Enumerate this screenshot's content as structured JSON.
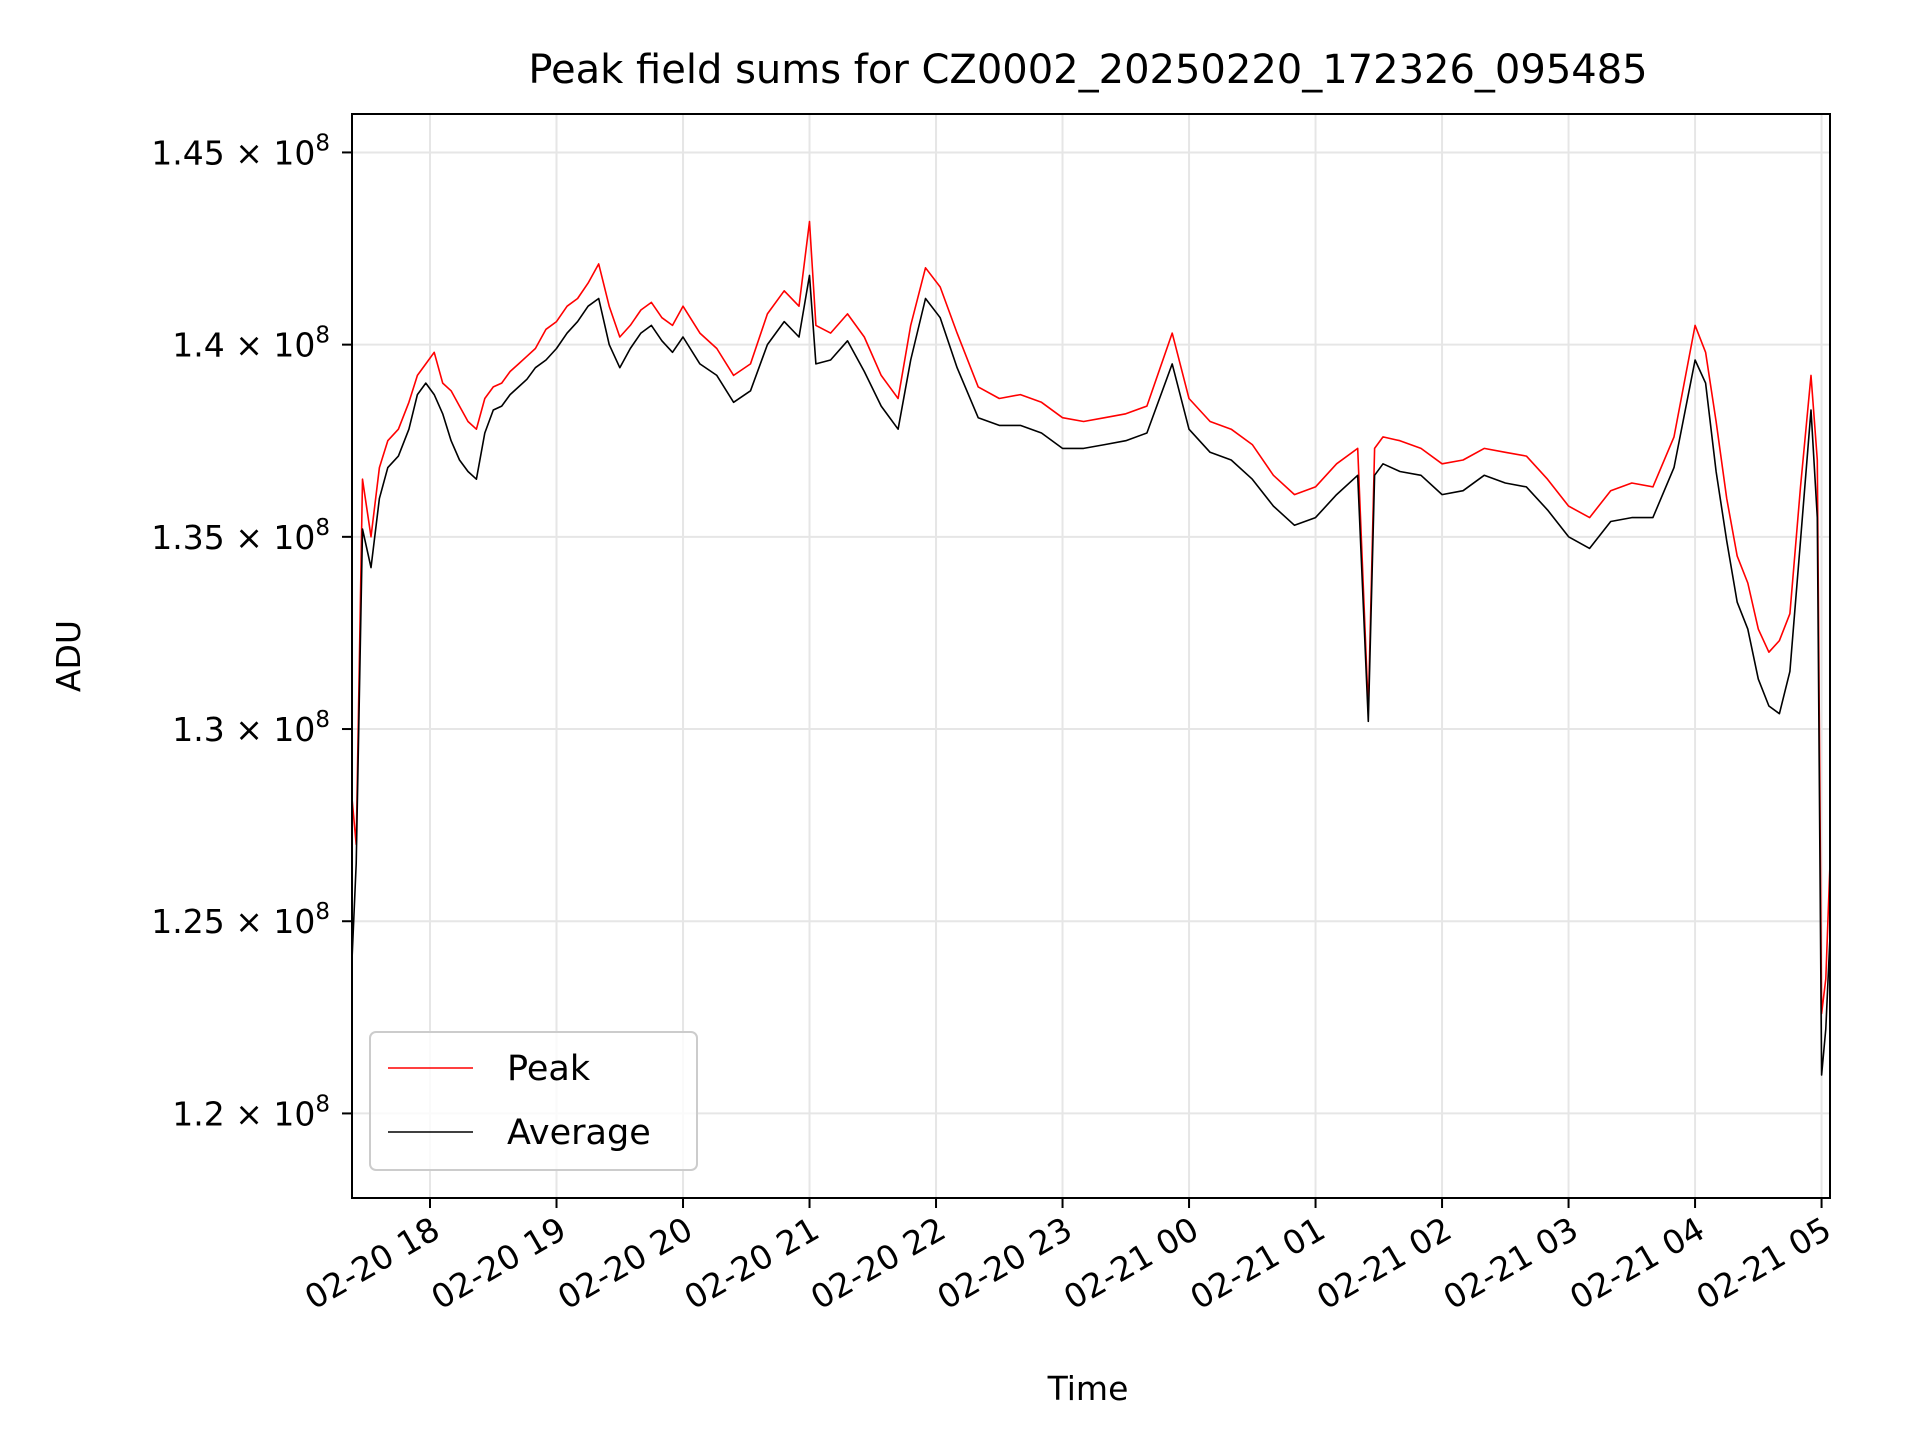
{
  "chart_data": {
    "type": "line",
    "title": "Peak field sums for CZ0002_20250220_172326_095485",
    "xlabel": "Time",
    "ylabel": "ADU",
    "xlim": [
      "2025-02-20 17:23",
      "2025-02-21 05:04"
    ],
    "ylim": [
      117800000,
      146000000
    ],
    "grid": true,
    "legend_position": "lower-left",
    "colors": {
      "Peak": "#ff0000",
      "Average": "#000000"
    },
    "x_ticks": [
      "2025-02-20 18:00",
      "2025-02-20 19:00",
      "2025-02-20 20:00",
      "2025-02-20 21:00",
      "2025-02-20 22:00",
      "2025-02-20 23:00",
      "2025-02-21 00:00",
      "2025-02-21 01:00",
      "2025-02-21 02:00",
      "2025-02-21 03:00",
      "2025-02-21 04:00",
      "2025-02-21 05:00"
    ],
    "x_tick_labels": [
      "02-20 18",
      "02-20 19",
      "02-20 20",
      "02-20 21",
      "02-20 22",
      "02-20 23",
      "02-21 00",
      "02-21 01",
      "02-21 02",
      "02-21 03",
      "02-21 04",
      "02-21 05"
    ],
    "y_ticks": [
      {
        "value": 120000000,
        "mantissa": "1.2"
      },
      {
        "value": 125000000,
        "mantissa": "1.25"
      },
      {
        "value": 130000000,
        "mantissa": "1.3"
      },
      {
        "value": 135000000,
        "mantissa": "1.35"
      },
      {
        "value": 140000000,
        "mantissa": "1.4"
      },
      {
        "value": 145000000,
        "mantissa": "1.45"
      }
    ],
    "y_tick_base": "10",
    "y_tick_exponent": "8",
    "series": [
      {
        "name": "Peak",
        "x": [
          "2025-02-20 17:23",
          "2025-02-20 17:25",
          "2025-02-20 17:28",
          "2025-02-20 17:32",
          "2025-02-20 17:36",
          "2025-02-20 17:40",
          "2025-02-20 17:45",
          "2025-02-20 17:50",
          "2025-02-20 17:54",
          "2025-02-20 17:58",
          "2025-02-20 18:02",
          "2025-02-20 18:06",
          "2025-02-20 18:10",
          "2025-02-20 18:14",
          "2025-02-20 18:18",
          "2025-02-20 18:22",
          "2025-02-20 18:26",
          "2025-02-20 18:30",
          "2025-02-20 18:34",
          "2025-02-20 18:38",
          "2025-02-20 18:42",
          "2025-02-20 18:46",
          "2025-02-20 18:50",
          "2025-02-20 18:55",
          "2025-02-20 19:00",
          "2025-02-20 19:05",
          "2025-02-20 19:10",
          "2025-02-20 19:15",
          "2025-02-20 19:20",
          "2025-02-20 19:25",
          "2025-02-20 19:30",
          "2025-02-20 19:35",
          "2025-02-20 19:40",
          "2025-02-20 19:45",
          "2025-02-20 19:50",
          "2025-02-20 19:55",
          "2025-02-20 20:00",
          "2025-02-20 20:08",
          "2025-02-20 20:16",
          "2025-02-20 20:24",
          "2025-02-20 20:32",
          "2025-02-20 20:40",
          "2025-02-20 20:48",
          "2025-02-20 20:55",
          "2025-02-20 21:00",
          "2025-02-20 21:03",
          "2025-02-20 21:10",
          "2025-02-20 21:18",
          "2025-02-20 21:26",
          "2025-02-20 21:34",
          "2025-02-20 21:42",
          "2025-02-20 21:48",
          "2025-02-20 21:55",
          "2025-02-20 22:02",
          "2025-02-20 22:10",
          "2025-02-20 22:20",
          "2025-02-20 22:30",
          "2025-02-20 22:40",
          "2025-02-20 22:50",
          "2025-02-20 23:00",
          "2025-02-20 23:10",
          "2025-02-20 23:20",
          "2025-02-20 23:30",
          "2025-02-20 23:40",
          "2025-02-20 23:52",
          "2025-02-21 00:00",
          "2025-02-21 00:10",
          "2025-02-21 00:20",
          "2025-02-21 00:30",
          "2025-02-21 00:40",
          "2025-02-21 00:50",
          "2025-02-21 01:00",
          "2025-02-21 01:10",
          "2025-02-21 01:20",
          "2025-02-21 01:25",
          "2025-02-21 01:28",
          "2025-02-21 01:32",
          "2025-02-21 01:40",
          "2025-02-21 01:50",
          "2025-02-21 02:00",
          "2025-02-21 02:10",
          "2025-02-21 02:20",
          "2025-02-21 02:30",
          "2025-02-21 02:40",
          "2025-02-21 02:50",
          "2025-02-21 03:00",
          "2025-02-21 03:10",
          "2025-02-21 03:20",
          "2025-02-21 03:30",
          "2025-02-21 03:40",
          "2025-02-21 03:50",
          "2025-02-21 04:00",
          "2025-02-21 04:05",
          "2025-02-21 04:10",
          "2025-02-21 04:15",
          "2025-02-21 04:20",
          "2025-02-21 04:25",
          "2025-02-21 04:30",
          "2025-02-21 04:35",
          "2025-02-21 04:40",
          "2025-02-21 04:45",
          "2025-02-21 04:50",
          "2025-02-21 04:55",
          "2025-02-21 04:58",
          "2025-02-21 05:00",
          "2025-02-21 05:02",
          "2025-02-21 05:04"
        ],
        "y": [
          128200000,
          127000000,
          136500000,
          135000000,
          136800000,
          137500000,
          137800000,
          138500000,
          139200000,
          139500000,
          139800000,
          139000000,
          138800000,
          138400000,
          138000000,
          137800000,
          138600000,
          138900000,
          139000000,
          139300000,
          139500000,
          139700000,
          139900000,
          140400000,
          140600000,
          141000000,
          141200000,
          141600000,
          142100000,
          141000000,
          140200000,
          140500000,
          140900000,
          141100000,
          140700000,
          140500000,
          141000000,
          140300000,
          139900000,
          139200000,
          139500000,
          140800000,
          141400000,
          141000000,
          143200000,
          140500000,
          140300000,
          140800000,
          140200000,
          139200000,
          138600000,
          140500000,
          142000000,
          141500000,
          140300000,
          138900000,
          138600000,
          138700000,
          138500000,
          138100000,
          138000000,
          138100000,
          138200000,
          138400000,
          140300000,
          138600000,
          138000000,
          137800000,
          137400000,
          136600000,
          136100000,
          136300000,
          136900000,
          137300000,
          130500000,
          137300000,
          137600000,
          137500000,
          137300000,
          136900000,
          137000000,
          137300000,
          137200000,
          137100000,
          136500000,
          135800000,
          135500000,
          136200000,
          136400000,
          136300000,
          137600000,
          140500000,
          139800000,
          138000000,
          136000000,
          134500000,
          133800000,
          132600000,
          132000000,
          132300000,
          133000000,
          136300000,
          139200000,
          137000000,
          122600000,
          123500000,
          126500000
        ]
      },
      {
        "name": "Average",
        "x": [
          "2025-02-20 17:23",
          "2025-02-20 17:25",
          "2025-02-20 17:28",
          "2025-02-20 17:32",
          "2025-02-20 17:36",
          "2025-02-20 17:40",
          "2025-02-20 17:45",
          "2025-02-20 17:50",
          "2025-02-20 17:54",
          "2025-02-20 17:58",
          "2025-02-20 18:02",
          "2025-02-20 18:06",
          "2025-02-20 18:10",
          "2025-02-20 18:14",
          "2025-02-20 18:18",
          "2025-02-20 18:22",
          "2025-02-20 18:26",
          "2025-02-20 18:30",
          "2025-02-20 18:34",
          "2025-02-20 18:38",
          "2025-02-20 18:42",
          "2025-02-20 18:46",
          "2025-02-20 18:50",
          "2025-02-20 18:55",
          "2025-02-20 19:00",
          "2025-02-20 19:05",
          "2025-02-20 19:10",
          "2025-02-20 19:15",
          "2025-02-20 19:20",
          "2025-02-20 19:25",
          "2025-02-20 19:30",
          "2025-02-20 19:35",
          "2025-02-20 19:40",
          "2025-02-20 19:45",
          "2025-02-20 19:50",
          "2025-02-20 19:55",
          "2025-02-20 20:00",
          "2025-02-20 20:08",
          "2025-02-20 20:16",
          "2025-02-20 20:24",
          "2025-02-20 20:32",
          "2025-02-20 20:40",
          "2025-02-20 20:48",
          "2025-02-20 20:55",
          "2025-02-20 21:00",
          "2025-02-20 21:03",
          "2025-02-20 21:10",
          "2025-02-20 21:18",
          "2025-02-20 21:26",
          "2025-02-20 21:34",
          "2025-02-20 21:42",
          "2025-02-20 21:48",
          "2025-02-20 21:55",
          "2025-02-20 22:02",
          "2025-02-20 22:10",
          "2025-02-20 22:20",
          "2025-02-20 22:30",
          "2025-02-20 22:40",
          "2025-02-20 22:50",
          "2025-02-20 23:00",
          "2025-02-20 23:10",
          "2025-02-20 23:20",
          "2025-02-20 23:30",
          "2025-02-20 23:40",
          "2025-02-20 23:52",
          "2025-02-21 00:00",
          "2025-02-21 00:10",
          "2025-02-21 00:20",
          "2025-02-21 00:30",
          "2025-02-21 00:40",
          "2025-02-21 00:50",
          "2025-02-21 01:00",
          "2025-02-21 01:10",
          "2025-02-21 01:20",
          "2025-02-21 01:25",
          "2025-02-21 01:28",
          "2025-02-21 01:32",
          "2025-02-21 01:40",
          "2025-02-21 01:50",
          "2025-02-21 02:00",
          "2025-02-21 02:10",
          "2025-02-21 02:20",
          "2025-02-21 02:30",
          "2025-02-21 02:40",
          "2025-02-21 02:50",
          "2025-02-21 03:00",
          "2025-02-21 03:10",
          "2025-02-21 03:20",
          "2025-02-21 03:30",
          "2025-02-21 03:40",
          "2025-02-21 03:50",
          "2025-02-21 04:00",
          "2025-02-21 04:05",
          "2025-02-21 04:10",
          "2025-02-21 04:15",
          "2025-02-21 04:20",
          "2025-02-21 04:25",
          "2025-02-21 04:30",
          "2025-02-21 04:35",
          "2025-02-21 04:40",
          "2025-02-21 04:45",
          "2025-02-21 04:50",
          "2025-02-21 04:55",
          "2025-02-21 04:58",
          "2025-02-21 05:00",
          "2025-02-21 05:02",
          "2025-02-21 05:04"
        ],
        "y": [
          124000000,
          126500000,
          135200000,
          134200000,
          136000000,
          136800000,
          137100000,
          137800000,
          138700000,
          139000000,
          138700000,
          138200000,
          137500000,
          137000000,
          136700000,
          136500000,
          137700000,
          138300000,
          138400000,
          138700000,
          138900000,
          139100000,
          139400000,
          139600000,
          139900000,
          140300000,
          140600000,
          141000000,
          141200000,
          140000000,
          139400000,
          139900000,
          140300000,
          140500000,
          140100000,
          139800000,
          140200000,
          139500000,
          139200000,
          138500000,
          138800000,
          140000000,
          140600000,
          140200000,
          141800000,
          139500000,
          139600000,
          140100000,
          139300000,
          138400000,
          137800000,
          139600000,
          141200000,
          140700000,
          139400000,
          138100000,
          137900000,
          137900000,
          137700000,
          137300000,
          137300000,
          137400000,
          137500000,
          137700000,
          139500000,
          137800000,
          137200000,
          137000000,
          136500000,
          135800000,
          135300000,
          135500000,
          136100000,
          136600000,
          130200000,
          136600000,
          136900000,
          136700000,
          136600000,
          136100000,
          136200000,
          136600000,
          136400000,
          136300000,
          135700000,
          135000000,
          134700000,
          135400000,
          135500000,
          135500000,
          136800000,
          139600000,
          139000000,
          136700000,
          134900000,
          133300000,
          132600000,
          131300000,
          130600000,
          130400000,
          131500000,
          134900000,
          138300000,
          135500000,
          121000000,
          122200000,
          124600000
        ]
      }
    ]
  }
}
